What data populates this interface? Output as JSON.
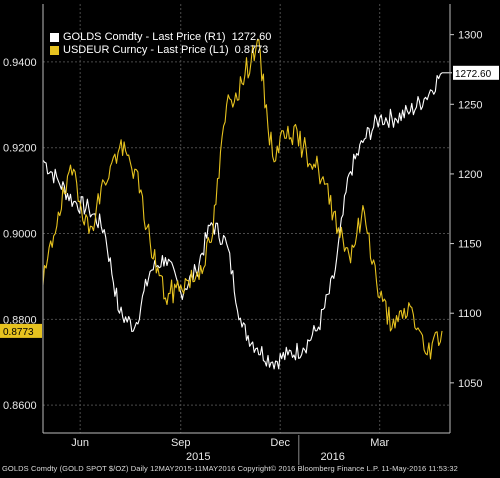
{
  "chart_data": {
    "type": "line",
    "title": "",
    "xlabel": "",
    "x_ticks": [
      "Jun",
      "Sep",
      "Dec",
      "Mar"
    ],
    "year_labels": [
      "2015",
      "2016"
    ],
    "left_axis": {
      "ticks": [
        "0.9400",
        "0.9200",
        "0.9000",
        "0.8800",
        "0.8600"
      ],
      "ylim": [
        0.8535,
        0.9535
      ]
    },
    "right_axis": {
      "ticks": [
        "1300",
        "1250",
        "1200",
        "1150",
        "1100",
        "1050"
      ],
      "ylim": [
        1014,
        1322
      ]
    },
    "series": [
      {
        "name": "GOLDS Comdty - Last Price (R1)",
        "last_value": "1272.60",
        "axis": "right",
        "color": "#ffffff",
        "tag": "1272.60",
        "dates": [
          "2015-05-12",
          "2015-05-26",
          "2015-06-09",
          "2015-06-23",
          "2015-07-07",
          "2015-07-21",
          "2015-08-04",
          "2015-08-18",
          "2015-09-01",
          "2015-09-15",
          "2015-09-29",
          "2015-10-13",
          "2015-10-27",
          "2015-11-10",
          "2015-11-24",
          "2015-12-08",
          "2015-12-22",
          "2016-01-05",
          "2016-01-19",
          "2016-02-02",
          "2016-02-16",
          "2016-03-01",
          "2016-03-15",
          "2016-03-29",
          "2016-04-12",
          "2016-04-26",
          "2016-05-11"
        ],
        "values": [
          1210,
          1195,
          1180,
          1175,
          1160,
          1100,
          1090,
          1130,
          1140,
          1115,
          1130,
          1165,
          1150,
          1090,
          1075,
          1065,
          1070,
          1075,
          1090,
          1125,
          1200,
          1225,
          1240,
          1240,
          1245,
          1255,
          1272.6
        ]
      },
      {
        "name": "USDEUR Curncy - Last Price (L1)",
        "last_value": "0.8773",
        "axis": "left",
        "color": "#e6c21f",
        "tag": "0.8773",
        "dates": [
          "2015-05-12",
          "2015-05-26",
          "2015-06-09",
          "2015-06-23",
          "2015-07-07",
          "2015-07-21",
          "2015-08-04",
          "2015-08-18",
          "2015-09-01",
          "2015-09-15",
          "2015-09-29",
          "2015-10-13",
          "2015-10-27",
          "2015-11-10",
          "2015-11-24",
          "2015-12-08",
          "2015-12-22",
          "2016-01-05",
          "2016-01-19",
          "2016-02-02",
          "2016-02-16",
          "2016-03-01",
          "2016-03-15",
          "2016-03-29",
          "2016-04-12",
          "2016-04-26",
          "2016-05-11"
        ],
        "values": [
          0.888,
          0.905,
          0.915,
          0.9,
          0.912,
          0.92,
          0.915,
          0.898,
          0.885,
          0.888,
          0.89,
          0.898,
          0.93,
          0.935,
          0.945,
          0.918,
          0.925,
          0.92,
          0.915,
          0.905,
          0.895,
          0.905,
          0.885,
          0.878,
          0.883,
          0.872,
          0.8773
        ]
      }
    ],
    "grid": true,
    "legend": "top-left"
  },
  "footer": {
    "ticker": "GOLDS Comdty (GOLD SPOT $/OZ)",
    "range": "Daily 12MAY2015-11MAY2016",
    "copyright": "Copyright© 2016 Bloomberg Finance L.P.",
    "timestamp": "11-May-2016 11:53:32"
  }
}
